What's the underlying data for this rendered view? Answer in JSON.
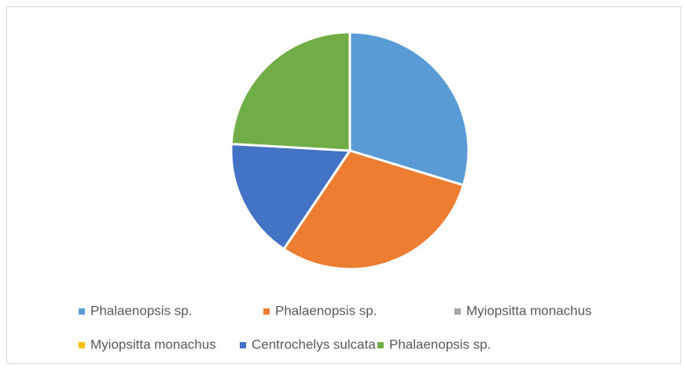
{
  "chart_data": {
    "type": "pie",
    "categories": [
      "Phalaenopsis sp.",
      "Phalaenopsis sp.",
      "Myiopsitta monachus",
      "Myiopsitta monachus",
      "Centrochelys sulcata",
      "Phalaenopsis sp."
    ],
    "values": [
      29.7,
      29.7,
      0,
      0,
      16.5,
      24.1
    ],
    "colors": [
      "#5b9bd5",
      "#ed7d31",
      "#a5a5a5",
      "#ffc000",
      "#4472c4",
      "#70ad47"
    ],
    "legend": "bottom"
  }
}
